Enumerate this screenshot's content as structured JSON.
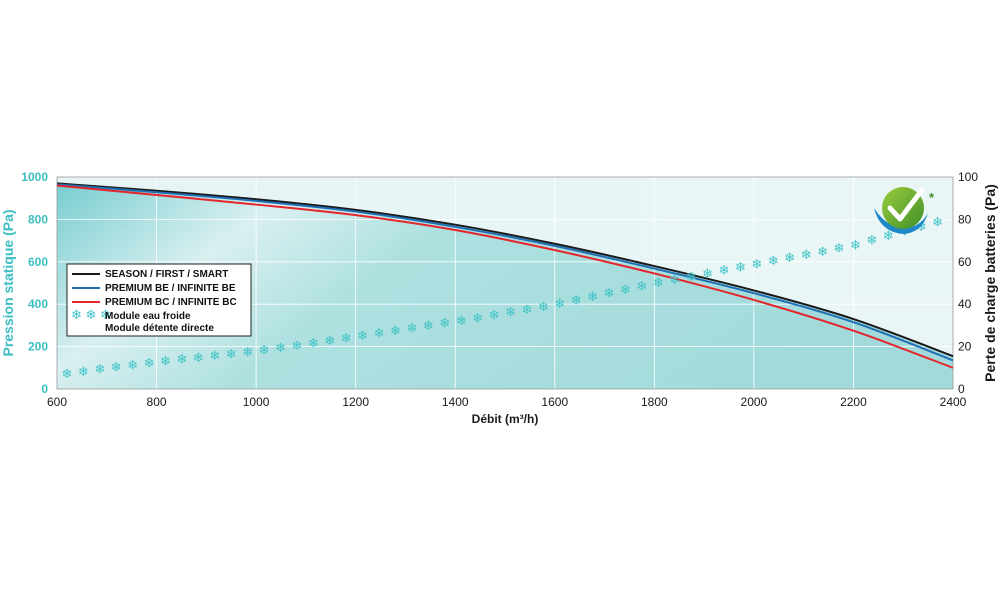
{
  "chart_data": {
    "type": "line",
    "xlabel": "Débit (m³/h)",
    "ylabel_left": "Pression statique (Pa)",
    "ylabel_right": "Perte de charge batteries (Pa)",
    "xlim": [
      600,
      2400
    ],
    "ylim_left": [
      0,
      1000
    ],
    "ylim_right": [
      0,
      100
    ],
    "x_ticks": [
      600,
      800,
      1000,
      1200,
      1400,
      1600,
      1800,
      2000,
      2200,
      2400
    ],
    "y_left_ticks": [
      0,
      200,
      400,
      600,
      800,
      1000
    ],
    "y_right_ticks": [
      0,
      20,
      40,
      60,
      80,
      100
    ],
    "grid": true,
    "legend_position": "left",
    "series": [
      {
        "name": "SEASON / FIRST / SMART",
        "axis": "left",
        "color": "#1a1a1a",
        "x": [
          600,
          800,
          1000,
          1200,
          1400,
          1600,
          1800,
          2000,
          2200,
          2400
        ],
        "y": [
          970,
          935,
          895,
          845,
          775,
          685,
          580,
          465,
          330,
          155
        ]
      },
      {
        "name": "PREMIUM BE / INFINITE BE",
        "axis": "left",
        "color": "#1f6fb5",
        "x": [
          600,
          800,
          1000,
          1200,
          1400,
          1600,
          1800,
          2000,
          2200,
          2400
        ],
        "y": [
          965,
          928,
          887,
          837,
          765,
          675,
          568,
          452,
          315,
          135
        ]
      },
      {
        "name": "PREMIUM BC / INFINITE BC",
        "axis": "left",
        "color": "#e3262b",
        "x": [
          600,
          800,
          1000,
          1200,
          1400,
          1600,
          1800,
          2000,
          2200,
          2400
        ],
        "y": [
          960,
          915,
          870,
          820,
          750,
          655,
          545,
          420,
          275,
          100
        ]
      },
      {
        "name": "Module eau froide / Module détente directe",
        "axis": "right",
        "style": "snowflake",
        "color": "#3ec3c6",
        "x": [
          600,
          800,
          1000,
          1200,
          1400,
          1600,
          1800,
          2000,
          2200,
          2400
        ],
        "y": [
          7,
          13,
          18,
          25,
          32,
          40,
          50,
          59,
          68,
          81
        ]
      }
    ],
    "legend": [
      {
        "label": "SEASON / FIRST / SMART",
        "color": "#1a1a1a",
        "marker": "line"
      },
      {
        "label": "PREMIUM BE / INFINITE BE",
        "color": "#1f6fb5",
        "marker": "line"
      },
      {
        "label": "PREMIUM BC / INFINITE BC",
        "color": "#e3262b",
        "marker": "line"
      },
      {
        "label": "Module eau froide",
        "label2": "Module détente directe",
        "color": "#3ec3c6",
        "marker": "snowflake"
      }
    ],
    "logo_asterisk": "*"
  }
}
